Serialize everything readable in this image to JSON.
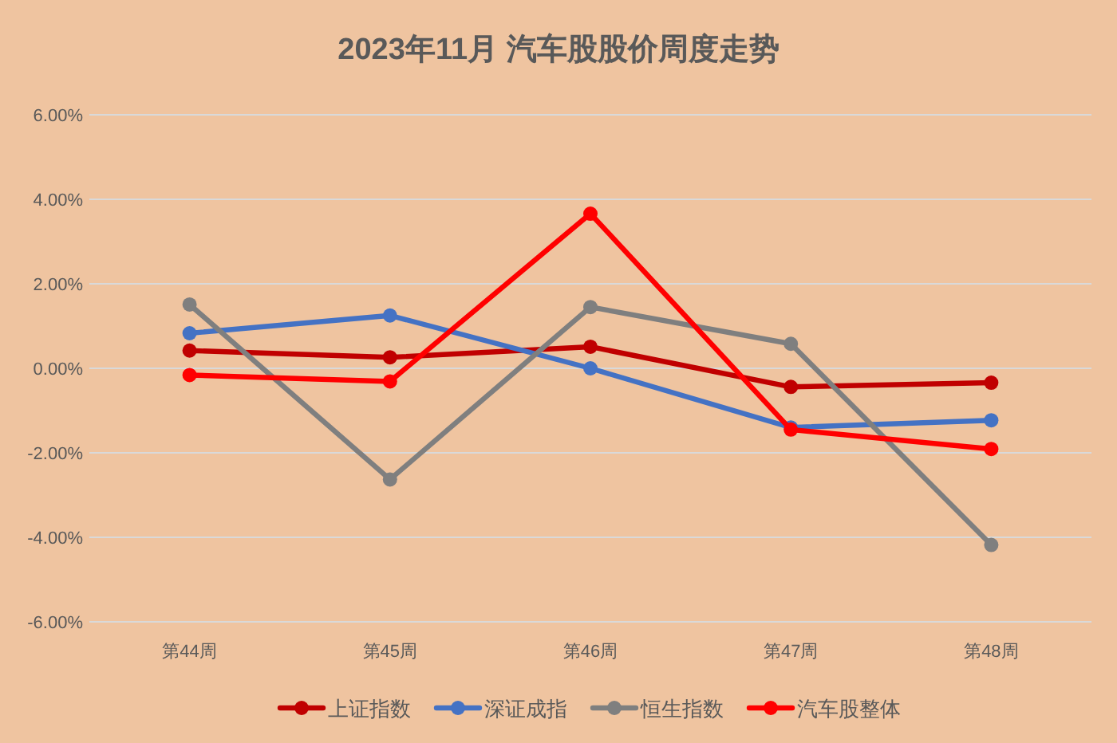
{
  "chart_data": {
    "type": "line",
    "title": "2023年11月 汽车股股价周度走势",
    "categories": [
      "第44周",
      "第45周",
      "第46周",
      "第47周",
      "第48周"
    ],
    "series": [
      {
        "name": "上证指数",
        "color": "#c00000",
        "values": [
          0.42,
          0.26,
          0.51,
          -0.44,
          -0.34
        ]
      },
      {
        "name": "深证成指",
        "color": "#4472c4",
        "values": [
          0.83,
          1.25,
          0.0,
          -1.4,
          -1.23
        ]
      },
      {
        "name": "恒生指数",
        "color": "#7f7f7f",
        "values": [
          1.51,
          -2.63,
          1.45,
          0.58,
          -4.18
        ]
      },
      {
        "name": "汽车股整体",
        "color": "#ff0000",
        "values": [
          -0.16,
          -0.31,
          3.66,
          -1.45,
          -1.91
        ]
      }
    ],
    "ylim": [
      -6,
      6
    ],
    "yticks": [
      {
        "value": -6,
        "label": "-6.00%"
      },
      {
        "value": -4,
        "label": "-4.00%"
      },
      {
        "value": -2,
        "label": "-2.00%"
      },
      {
        "value": 0,
        "label": "0.00%"
      },
      {
        "value": 2,
        "label": "2.00%"
      },
      {
        "value": 4,
        "label": "4.00%"
      },
      {
        "value": 6,
        "label": "6.00%"
      }
    ],
    "grid": "y",
    "legend": "bottom",
    "marker": "circle",
    "line_style": "solid"
  }
}
